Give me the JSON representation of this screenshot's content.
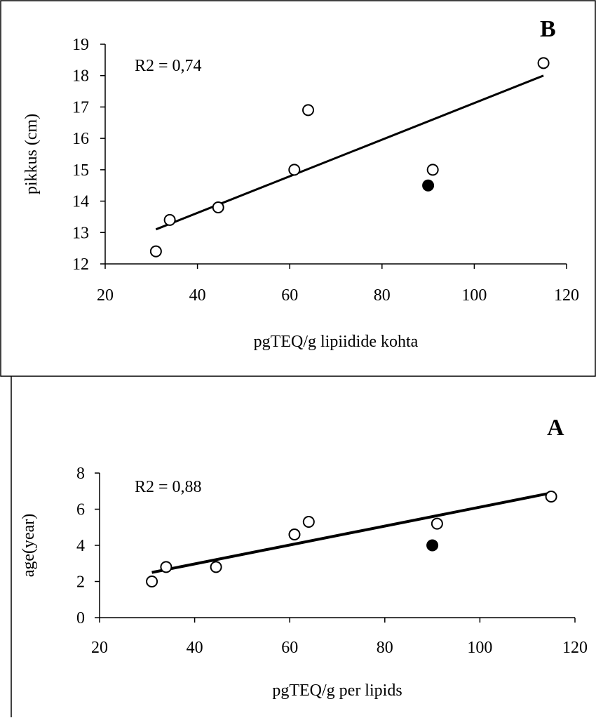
{
  "chart_data": [
    {
      "type": "scatter",
      "panel_label": "B",
      "annotation": "R2 = 0,74",
      "xlabel": "pgTEQ/g lipiidide kohta",
      "ylabel": "pikkus (cm)",
      "xlim": [
        20,
        120
      ],
      "ylim": [
        12,
        19
      ],
      "x_ticks": [
        "20",
        "40",
        "60",
        "80",
        "100",
        "120"
      ],
      "y_ticks": [
        "12",
        "13",
        "14",
        "15",
        "16",
        "17",
        "18",
        "19"
      ],
      "series": [
        {
          "marker": "open-circle",
          "x": [
            31,
            34,
            44.5,
            61,
            64,
            91,
            115
          ],
          "y": [
            12.4,
            13.4,
            13.8,
            15.0,
            16.9,
            15.0,
            18.4
          ]
        },
        {
          "marker": "filled-circle",
          "x": [
            90
          ],
          "y": [
            14.5
          ]
        }
      ],
      "trendline": {
        "x": [
          31,
          115
        ],
        "y": [
          13.1,
          18.0
        ]
      }
    },
    {
      "type": "scatter",
      "panel_label": "A",
      "annotation": "R2 = 0,88",
      "xlabel": "pgTEQ/g per lipids",
      "ylabel": "age(year)",
      "xlim": [
        20,
        120
      ],
      "ylim": [
        0,
        8
      ],
      "x_ticks": [
        "20",
        "40",
        "60",
        "80",
        "100",
        "120"
      ],
      "y_ticks": [
        "0",
        "2",
        "4",
        "6",
        "8"
      ],
      "series": [
        {
          "marker": "open-circle",
          "x": [
            31,
            34,
            44.5,
            61,
            64,
            91,
            115
          ],
          "y": [
            2.0,
            2.8,
            2.8,
            4.6,
            5.3,
            5.2,
            6.7
          ]
        },
        {
          "marker": "filled-circle",
          "x": [
            90
          ],
          "y": [
            4.0
          ]
        }
      ],
      "trendline": {
        "x": [
          31,
          115
        ],
        "y": [
          2.5,
          6.9
        ]
      }
    }
  ]
}
